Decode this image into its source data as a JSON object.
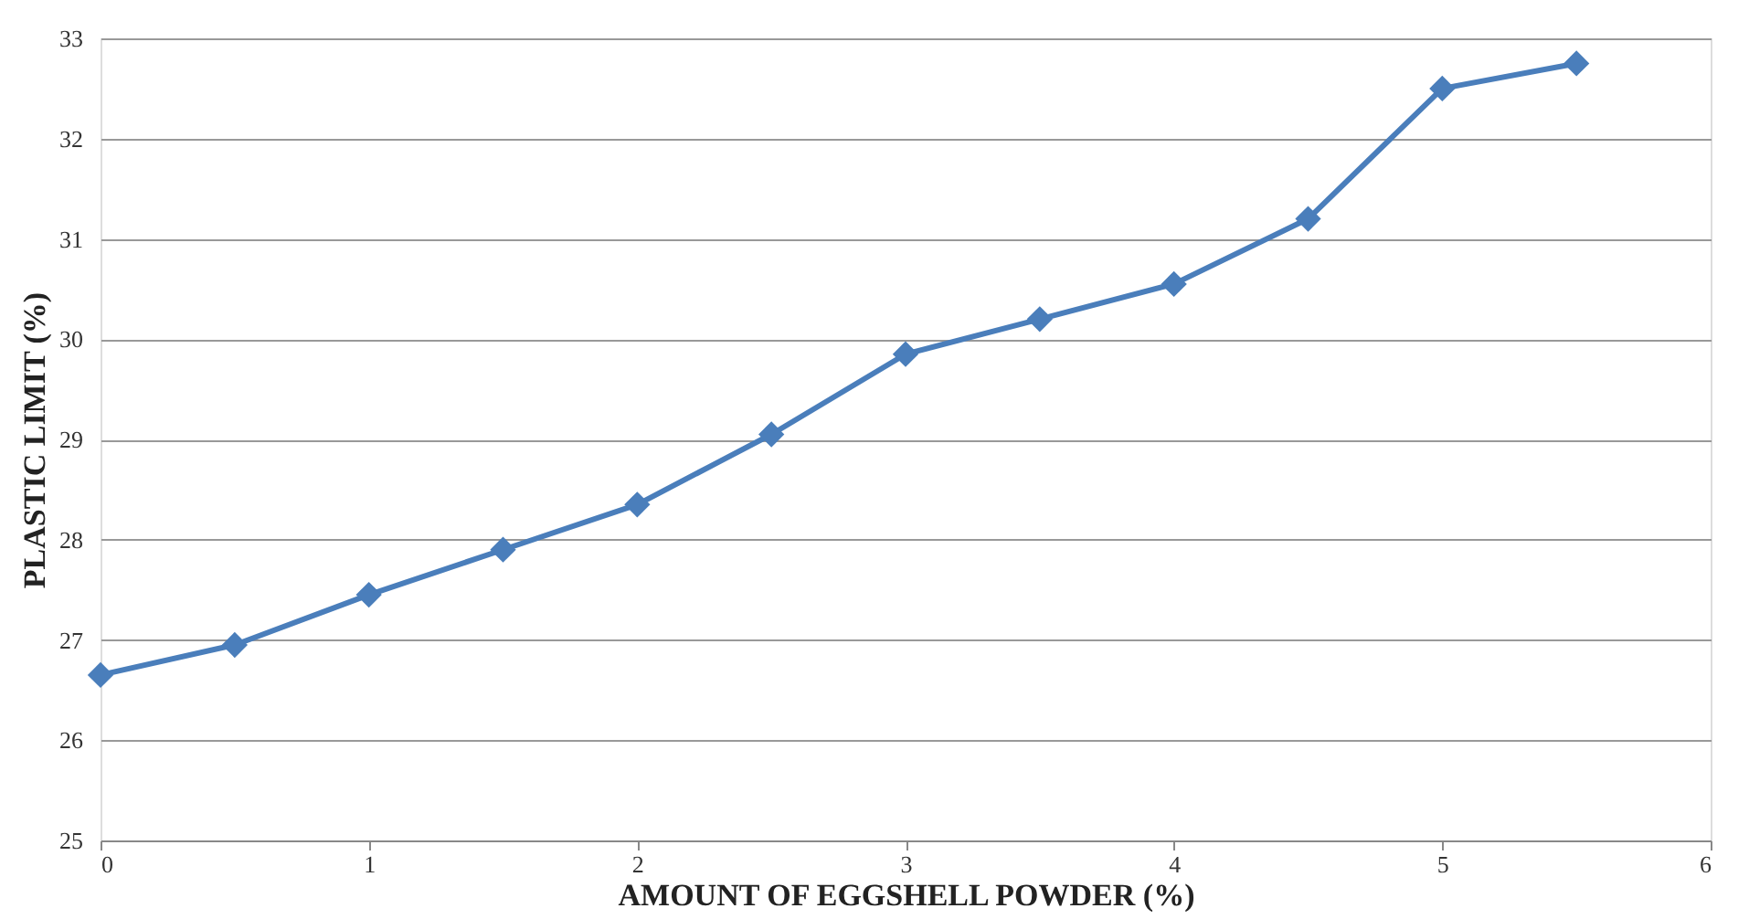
{
  "chart_data": {
    "type": "line",
    "xlabel": "AMOUNT OF EGGSHELL POWDER (%)",
    "ylabel": "PLASTIC LIMIT (%)",
    "x": [
      0,
      0.5,
      1,
      1.5,
      2,
      2.5,
      3,
      3.5,
      4,
      4.5,
      5,
      5.5
    ],
    "series": [
      {
        "color": "#4a7ebb",
        "values": [
          26.65,
          26.95,
          27.45,
          27.9,
          28.35,
          29.05,
          29.85,
          30.2,
          30.55,
          31.2,
          32.5,
          32.75
        ]
      }
    ],
    "xlim": [
      0,
      6
    ],
    "xticks": [
      0,
      1,
      2,
      3,
      4,
      5,
      6
    ],
    "ylim": [
      25,
      33
    ],
    "yticks": [
      25,
      26,
      27,
      28,
      29,
      30,
      31,
      32,
      33
    ],
    "grid": "y",
    "marker": "diamond",
    "line_style": "solid"
  }
}
